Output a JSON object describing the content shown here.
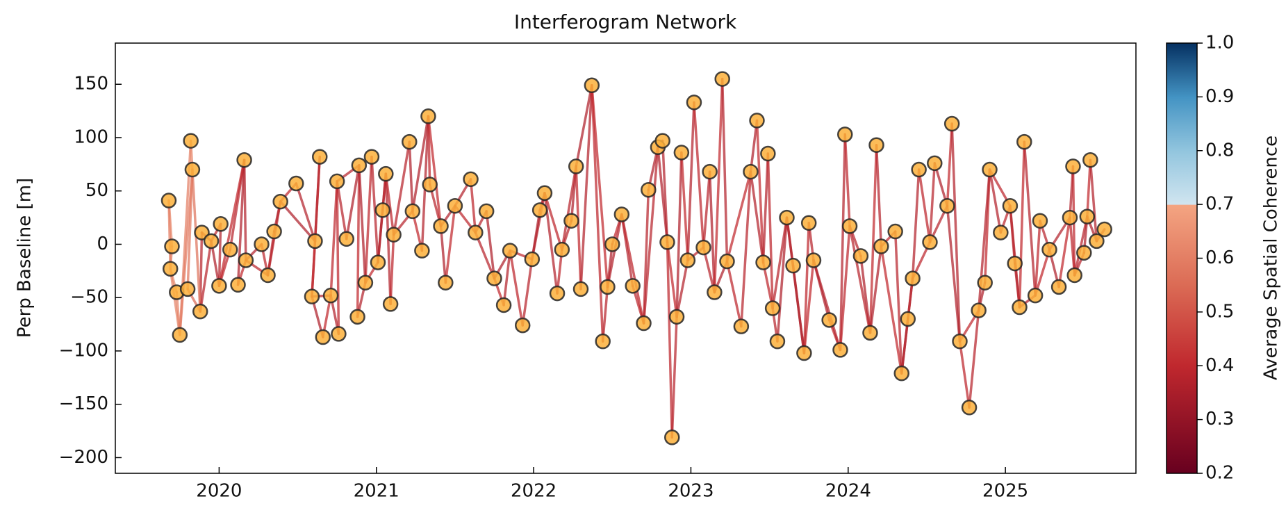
{
  "chart_data": {
    "type": "network",
    "title": "Interferogram Network",
    "ylabel": "Perp Baseline [m]",
    "xlim": [
      2019.34,
      2025.83
    ],
    "ylim": [
      -214.7,
      188.6
    ],
    "xticks": [
      2020,
      2021,
      2022,
      2023,
      2024,
      2025
    ],
    "yticks": [
      {
        "value": -200,
        "label": "−200"
      },
      {
        "value": -150,
        "label": "−150"
      },
      {
        "value": -100,
        "label": "−100"
      },
      {
        "value": -50,
        "label": "−50"
      },
      0,
      50,
      100,
      150
    ],
    "node_color": "#fbb03b",
    "node_edge_color": "#262626",
    "nodes": {
      "x": [
        2019.68,
        2019.7,
        2019.69,
        2019.73,
        2019.75,
        2019.82,
        2019.83,
        2019.8,
        2019.88,
        2019.89,
        2019.95,
        2020.01,
        2020.0,
        2020.07,
        2020.16,
        2020.12,
        2020.17,
        2020.27,
        2020.31,
        2020.35,
        2020.39,
        2020.49,
        2020.61,
        2020.64,
        2020.59,
        2020.66,
        2020.71,
        2020.76,
        2020.75,
        2020.81,
        2020.89,
        2020.88,
        2020.93,
        2020.97,
        2021.01,
        2021.04,
        2021.06,
        2021.09,
        2021.11,
        2021.21,
        2021.23,
        2021.29,
        2021.33,
        2021.34,
        2021.41,
        2021.44,
        2021.5,
        2021.6,
        2021.63,
        2021.7,
        2021.75,
        2021.81,
        2021.85,
        2021.93,
        2021.99,
        2022.04,
        2022.07,
        2022.15,
        2022.18,
        2022.24,
        2022.27,
        2022.3,
        2022.37,
        2022.44,
        2022.47,
        2022.5,
        2022.56,
        2022.63,
        2022.7,
        2022.73,
        2022.79,
        2022.82,
        2022.85,
        2022.88,
        2022.91,
        2022.94,
        2022.98,
        2023.02,
        2023.08,
        2023.12,
        2023.15,
        2023.2,
        2023.23,
        2023.32,
        2023.38,
        2023.42,
        2023.46,
        2023.49,
        2023.52,
        2023.55,
        2023.61,
        2023.65,
        2023.72,
        2023.75,
        2023.78,
        2023.88,
        2023.95,
        2023.98,
        2024.01,
        2024.08,
        2024.14,
        2024.18,
        2024.21,
        2024.3,
        2024.34,
        2024.38,
        2024.41,
        2024.45,
        2024.52,
        2024.55,
        2024.63,
        2024.66,
        2024.71,
        2024.77,
        2024.83,
        2024.87,
        2024.9,
        2024.97,
        2025.03,
        2025.06,
        2025.09,
        2025.12,
        2025.19,
        2025.22,
        2025.28,
        2025.34,
        2025.41,
        2025.43,
        2025.44,
        2025.5,
        2025.52,
        2025.54,
        2025.58,
        2025.63
      ],
      "y": [
        41,
        -2,
        -23,
        -45,
        -85,
        97,
        70,
        -42,
        -63,
        11,
        3,
        19,
        -39,
        -5,
        79,
        -38,
        -15,
        0,
        -29,
        12,
        40,
        57,
        3,
        82,
        -49,
        -87,
        -48,
        -84,
        59,
        5,
        74,
        -68,
        -36,
        82,
        -17,
        32,
        66,
        -56,
        9,
        96,
        31,
        -6,
        120,
        56,
        17,
        -36,
        36,
        61,
        11,
        31,
        -32,
        -57,
        -6,
        -76,
        -14,
        32,
        48,
        -46,
        -5,
        22,
        73,
        -42,
        149,
        -91,
        -40,
        0,
        28,
        -39,
        -74,
        51,
        91,
        97,
        2,
        -181,
        -68,
        86,
        -15,
        133,
        -3,
        68,
        -45,
        155,
        -16,
        -77,
        68,
        116,
        -17,
        85,
        -60,
        -91,
        25,
        -20,
        -102,
        20,
        -15,
        -71,
        -99,
        103,
        17,
        -11,
        -83,
        93,
        -2,
        12,
        -121,
        -70,
        -32,
        70,
        2,
        76,
        36,
        113,
        -91,
        -153,
        -62,
        -36,
        70,
        11,
        36,
        -18,
        -59,
        96,
        -48,
        22,
        -5,
        -40,
        25,
        73,
        -29,
        -8,
        26,
        79,
        3,
        14
      ]
    },
    "edges": {
      "source": [
        0,
        1,
        2,
        3,
        4,
        5,
        6,
        7,
        8,
        9,
        10,
        11,
        12,
        13,
        14,
        15,
        16,
        17,
        18,
        19,
        20,
        21,
        22,
        23,
        24,
        25,
        26,
        27,
        28,
        29,
        30,
        31,
        32,
        33,
        34,
        35,
        36,
        37,
        38,
        39,
        40,
        41,
        42,
        43,
        44,
        45,
        46,
        47,
        48,
        49,
        50,
        51,
        52,
        53,
        54,
        55,
        56,
        57,
        58,
        59,
        60,
        61,
        62,
        63,
        64,
        65,
        66,
        67,
        68,
        69,
        70,
        71,
        72,
        73,
        74,
        75,
        76,
        77,
        78,
        79,
        80,
        81,
        82,
        83,
        84,
        85,
        86,
        87,
        88,
        89,
        90,
        91,
        92,
        93,
        94,
        95,
        96,
        97,
        98,
        99,
        100,
        101,
        102,
        103,
        104,
        105,
        106,
        107,
        108,
        109,
        110,
        111,
        112,
        113,
        114,
        115,
        116,
        117,
        118,
        119,
        120,
        121,
        122,
        123,
        124,
        125,
        126,
        127,
        128,
        129,
        130,
        131,
        132,
        0,
        2,
        4,
        6,
        8,
        10,
        12,
        14,
        16,
        18,
        20,
        22,
        24,
        26,
        28,
        30,
        32,
        34,
        36,
        38,
        40,
        42,
        44,
        46,
        48,
        50,
        52,
        54,
        56,
        58,
        60,
        62,
        64,
        66,
        68,
        70,
        72,
        74,
        76,
        78,
        80,
        82,
        84,
        86,
        88,
        90,
        92,
        94,
        96,
        98,
        100,
        102,
        104,
        106,
        108,
        110,
        112,
        114,
        116,
        118,
        120,
        122,
        124,
        126,
        128,
        130
      ],
      "target": [
        1,
        2,
        3,
        4,
        5,
        6,
        7,
        8,
        9,
        10,
        11,
        12,
        13,
        14,
        15,
        16,
        17,
        18,
        19,
        20,
        21,
        22,
        23,
        24,
        25,
        26,
        27,
        28,
        29,
        30,
        31,
        32,
        33,
        34,
        35,
        36,
        37,
        38,
        39,
        40,
        41,
        42,
        43,
        44,
        45,
        46,
        47,
        48,
        49,
        50,
        51,
        52,
        53,
        54,
        55,
        56,
        57,
        58,
        59,
        60,
        61,
        62,
        63,
        64,
        65,
        66,
        67,
        68,
        69,
        70,
        71,
        72,
        73,
        74,
        75,
        76,
        77,
        78,
        79,
        80,
        81,
        82,
        83,
        84,
        85,
        86,
        87,
        88,
        89,
        90,
        91,
        92,
        93,
        94,
        95,
        96,
        97,
        98,
        99,
        100,
        101,
        102,
        103,
        104,
        105,
        106,
        107,
        108,
        109,
        110,
        111,
        112,
        113,
        114,
        115,
        116,
        117,
        118,
        119,
        120,
        121,
        122,
        123,
        124,
        125,
        126,
        127,
        128,
        129,
        130,
        131,
        132,
        133,
        2,
        4,
        6,
        8,
        10,
        12,
        14,
        16,
        18,
        20,
        22,
        24,
        26,
        28,
        30,
        32,
        34,
        36,
        38,
        40,
        42,
        44,
        46,
        48,
        50,
        52,
        54,
        56,
        58,
        60,
        62,
        64,
        66,
        68,
        70,
        72,
        74,
        76,
        78,
        80,
        82,
        84,
        86,
        88,
        90,
        92,
        94,
        96,
        98,
        100,
        102,
        104,
        106,
        108,
        110,
        112,
        114,
        116,
        118,
        120,
        122,
        124,
        126,
        128,
        130,
        132
      ],
      "coherence": [
        0.62,
        0.6,
        0.63,
        0.61,
        0.6,
        0.62,
        0.58,
        0.55,
        0.38,
        0.36,
        0.4,
        0.37,
        0.39,
        0.38,
        0.36,
        0.4,
        0.37,
        0.39,
        0.38,
        0.36,
        0.4,
        0.37,
        0.39,
        0.38,
        0.36,
        0.4,
        0.37,
        0.39,
        0.38,
        0.36,
        0.4,
        0.37,
        0.39,
        0.38,
        0.36,
        0.4,
        0.37,
        0.39,
        0.38,
        0.36,
        0.4,
        0.37,
        0.39,
        0.38,
        0.36,
        0.4,
        0.37,
        0.39,
        0.38,
        0.36,
        0.4,
        0.37,
        0.39,
        0.38,
        0.36,
        0.4,
        0.37,
        0.39,
        0.38,
        0.36,
        0.4,
        0.37,
        0.39,
        0.38,
        0.36,
        0.4,
        0.37,
        0.39,
        0.38,
        0.36,
        0.4,
        0.37,
        0.39,
        0.38,
        0.36,
        0.4,
        0.37,
        0.39,
        0.38,
        0.36,
        0.4,
        0.37,
        0.39,
        0.38,
        0.36,
        0.4,
        0.37,
        0.39,
        0.38,
        0.36,
        0.4,
        0.37,
        0.39,
        0.38,
        0.36,
        0.4,
        0.37,
        0.39,
        0.38,
        0.36,
        0.4,
        0.37,
        0.39,
        0.38,
        0.36,
        0.4,
        0.37,
        0.39,
        0.38,
        0.36,
        0.4,
        0.37,
        0.39,
        0.38,
        0.36,
        0.4,
        0.37,
        0.39,
        0.38,
        0.36,
        0.4,
        0.37,
        0.39,
        0.38,
        0.36,
        0.4,
        0.37,
        0.39,
        0.38,
        0.36,
        0.4,
        0.37,
        0.39,
        0.6,
        0.61,
        0.59,
        0.57,
        0.38,
        0.36,
        0.4,
        0.37,
        0.39,
        0.38,
        0.36,
        0.4,
        0.37,
        0.39,
        0.38,
        0.36,
        0.4,
        0.37,
        0.39,
        0.38,
        0.36,
        0.4,
        0.37,
        0.39,
        0.38,
        0.36,
        0.4,
        0.37,
        0.39,
        0.38,
        0.36,
        0.4,
        0.37,
        0.39,
        0.38,
        0.36,
        0.4,
        0.37,
        0.39,
        0.38,
        0.36,
        0.4,
        0.37,
        0.39,
        0.38,
        0.36,
        0.4,
        0.37,
        0.39,
        0.38,
        0.36,
        0.4,
        0.37,
        0.39,
        0.38,
        0.36,
        0.4,
        0.37,
        0.39,
        0.38,
        0.36,
        0.4,
        0.37,
        0.39,
        0.38,
        0.36
      ]
    },
    "colorbar": {
      "label": "Average Spatial Coherence",
      "lim": [
        0.2,
        1
      ],
      "ticks": [
        0.2,
        0.3,
        0.4,
        0.5,
        0.6,
        0.7,
        0.8,
        0.9,
        {
          "value": 1,
          "label": "1.0"
        }
      ],
      "stops": [
        {
          "value": 0.2,
          "color": "#67001f"
        },
        {
          "value": 0.4,
          "color": "#c0282e"
        },
        {
          "value": 0.55,
          "color": "#db6b55"
        },
        {
          "value": 0.7,
          "color": "#f4a582"
        },
        {
          "value": 0.7,
          "color": "#d1e5f0"
        },
        {
          "value": 0.8,
          "color": "#92c5de"
        },
        {
          "value": 0.9,
          "color": "#4393c3"
        },
        {
          "value": 1,
          "color": "#053061"
        }
      ]
    }
  }
}
